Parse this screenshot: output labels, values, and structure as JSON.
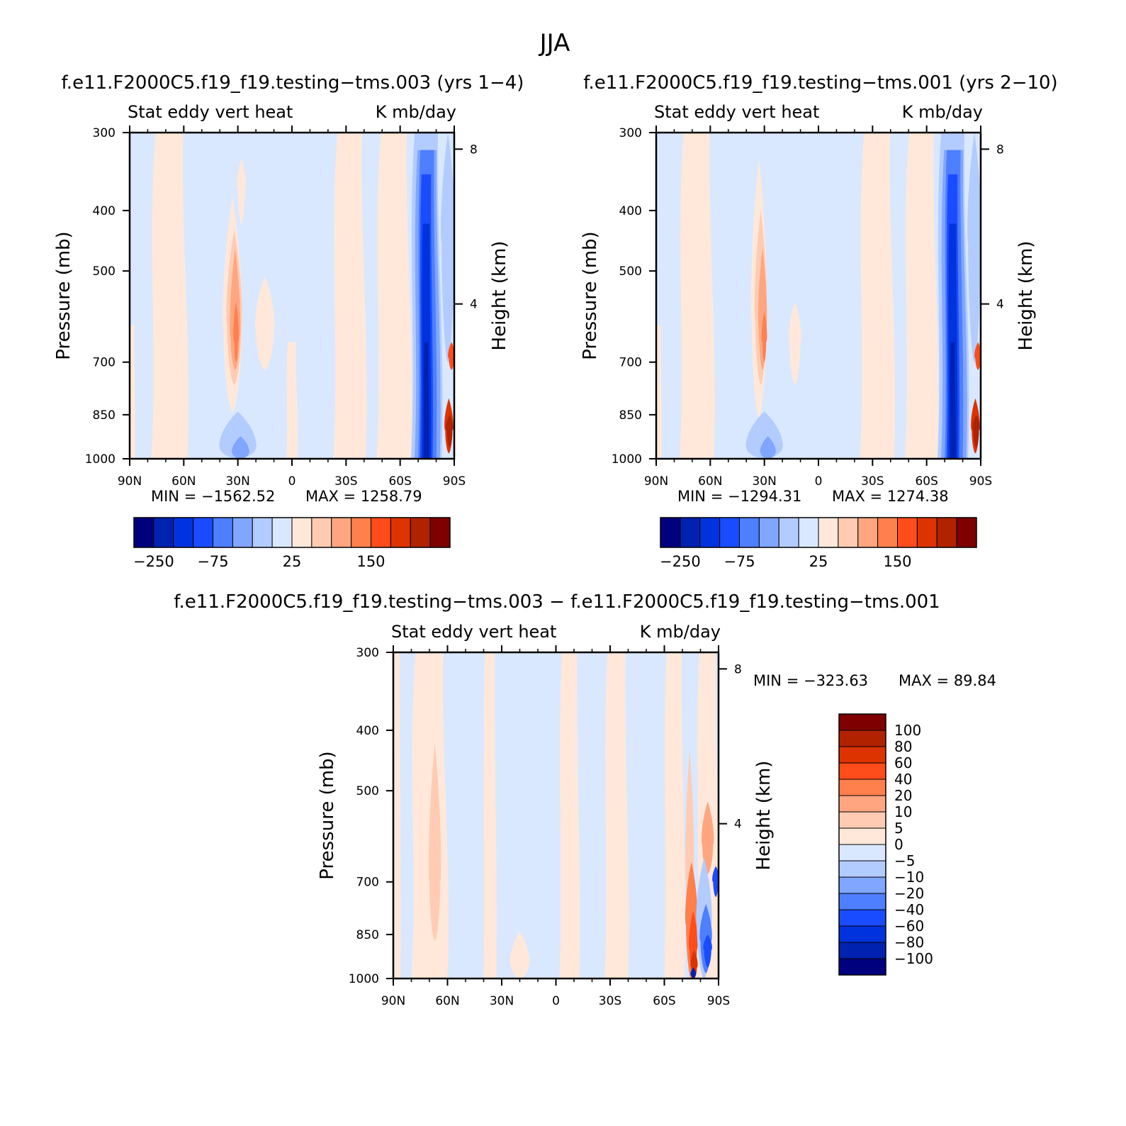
{
  "figure": {
    "title": "JJA"
  },
  "colors": {
    "scale": [
      "#00007f",
      "#0022b0",
      "#0033dd",
      "#1a4cff",
      "#4d7fff",
      "#80a6ff",
      "#b3ccff",
      "#d9e8ff",
      "#ffe8d9",
      "#ffccb3",
      "#ffa680",
      "#ff7f4d",
      "#ff4c1a",
      "#dd3300",
      "#b02200",
      "#7f0000"
    ]
  },
  "chart_data": [
    {
      "type": "heatmap",
      "name": "panel-top-left",
      "title": "f.e11.F2000C5.f19_f19.testing−tms.003 (yrs 1−4)",
      "left_label": "Stat eddy vert heat",
      "right_label": "K mb/day",
      "xlabel": "",
      "ylabel": "Pressure (mb)",
      "y2label": "Height (km)",
      "xticks": [
        "90N",
        "60N",
        "30N",
        "0",
        "30S",
        "60S",
        "90S"
      ],
      "yticks": [
        300,
        400,
        500,
        700,
        850,
        1000
      ],
      "y2ticks": [
        8,
        4
      ],
      "ylim": [
        1000,
        300
      ],
      "y_scale": "log",
      "min_label": "MIN = −1562.52",
      "max_label": "MAX = 1258.79",
      "colorbar": {
        "orientation": "horizontal",
        "labels": [
          "−250",
          "−75",
          "25",
          "150"
        ]
      },
      "fields": [
        {
          "type": "band",
          "lat": [
            58,
            78
          ],
          "p": [
            300,
            1000
          ],
          "level": 8
        },
        {
          "type": "band",
          "lat": [
            -23,
            -41
          ],
          "p": [
            300,
            1000
          ],
          "level": 8
        },
        {
          "type": "band",
          "lat": [
            -47,
            -66
          ],
          "p": [
            300,
            1000
          ],
          "level": 8
        },
        {
          "type": "band",
          "lat": [
            87,
            90
          ],
          "p": [
            610,
            1000
          ],
          "level": 8
        },
        {
          "type": "band",
          "lat": [
            -3,
            3
          ],
          "p": [
            650,
            1000
          ],
          "level": 8
        },
        {
          "type": "blob",
          "lat": [
            28,
            38
          ],
          "p": [
            380,
            840
          ],
          "peak_p": 620,
          "level": 8
        },
        {
          "type": "blob",
          "lat": [
            28,
            36
          ],
          "p": [
            430,
            760
          ],
          "peak_p": 610,
          "level": 9
        },
        {
          "type": "blob",
          "lat": [
            29,
            34
          ],
          "p": [
            460,
            720
          ],
          "peak_p": 640,
          "level": 10
        },
        {
          "type": "blob",
          "lat": [
            30,
            32
          ],
          "p": [
            560,
            700
          ],
          "peak_p": 650,
          "level": 11
        },
        {
          "type": "blob",
          "lat": [
            26,
            30
          ],
          "p": [
            330,
            420
          ],
          "peak_p": 370,
          "level": 8
        },
        {
          "type": "blob",
          "lat": [
            10,
            20
          ],
          "p": [
            510,
            720
          ],
          "peak_p": 620,
          "level": 8
        },
        {
          "type": "blob",
          "lat": [
            20,
            40
          ],
          "p": [
            840,
            1000
          ],
          "peak_p": 960,
          "level": 6
        },
        {
          "type": "blob",
          "lat": [
            24,
            33
          ],
          "p": [
            920,
            1000
          ],
          "peak_p": 980,
          "level": 5
        },
        {
          "type": "band",
          "lat": [
            -66,
            -83
          ],
          "p": [
            300,
            1000
          ],
          "level": 6
        },
        {
          "type": "band",
          "lat": [
            -68,
            -82
          ],
          "p": [
            320,
            1000
          ],
          "level": 5
        },
        {
          "type": "band",
          "lat": [
            -70,
            -80
          ],
          "p": [
            320,
            1000
          ],
          "level": 4
        },
        {
          "type": "band",
          "lat": [
            -71,
            -78
          ],
          "p": [
            350,
            1000
          ],
          "level": 3
        },
        {
          "type": "band",
          "lat": [
            -72,
            -77
          ],
          "p": [
            420,
            1000
          ],
          "level": 2
        },
        {
          "type": "band",
          "lat": [
            -73,
            -76
          ],
          "p": [
            650,
            1000
          ],
          "level": 1
        },
        {
          "type": "blob",
          "lat": [
            -83,
            -90
          ],
          "p": [
            300,
            700
          ],
          "peak_p": 450,
          "level": 6
        },
        {
          "type": "blob",
          "lat": [
            -85,
            -89
          ],
          "p": [
            800,
            980
          ],
          "peak_p": 900,
          "level": 13
        },
        {
          "type": "blob",
          "lat": [
            -86,
            -89
          ],
          "p": [
            850,
            960
          ],
          "peak_p": 900,
          "level": 14
        },
        {
          "type": "blob",
          "lat": [
            -87,
            -90
          ],
          "p": [
            650,
            720
          ],
          "peak_p": 690,
          "level": 12
        }
      ]
    },
    {
      "type": "heatmap",
      "name": "panel-top-right",
      "title": "f.e11.F2000C5.f19_f19.testing−tms.001 (yrs 2−10)",
      "left_label": "Stat eddy vert heat",
      "right_label": "K mb/day",
      "xlabel": "",
      "ylabel": "Pressure (mb)",
      "y2label": "Height (km)",
      "xticks": [
        "90N",
        "60N",
        "30N",
        "0",
        "30S",
        "60S",
        "90S"
      ],
      "yticks": [
        300,
        400,
        500,
        700,
        850,
        1000
      ],
      "y2ticks": [
        8,
        4
      ],
      "ylim": [
        1000,
        300
      ],
      "y_scale": "log",
      "min_label": "MIN = −1294.31",
      "max_label": "MAX = 1274.38",
      "colorbar": {
        "orientation": "horizontal",
        "labels": [
          "−250",
          "−75",
          "25",
          "150"
        ]
      },
      "fields": [
        {
          "type": "band",
          "lat": [
            58,
            77
          ],
          "p": [
            300,
            1000
          ],
          "level": 8
        },
        {
          "type": "band",
          "lat": [
            -23,
            -42
          ],
          "p": [
            300,
            1000
          ],
          "level": 8
        },
        {
          "type": "band",
          "lat": [
            -48,
            -66
          ],
          "p": [
            300,
            1000
          ],
          "level": 8
        },
        {
          "type": "band",
          "lat": [
            87,
            90
          ],
          "p": [
            610,
            1000
          ],
          "level": 8
        },
        {
          "type": "blob",
          "lat": [
            29,
            37
          ],
          "p": [
            330,
            860
          ],
          "peak_p": 600,
          "level": 8
        },
        {
          "type": "blob",
          "lat": [
            29,
            35
          ],
          "p": [
            400,
            760
          ],
          "peak_p": 600,
          "level": 9
        },
        {
          "type": "blob",
          "lat": [
            29,
            33
          ],
          "p": [
            460,
            720
          ],
          "peak_p": 620,
          "level": 10
        },
        {
          "type": "blob",
          "lat": [
            29,
            31
          ],
          "p": [
            580,
            700
          ],
          "peak_p": 650,
          "level": 11
        },
        {
          "type": "blob",
          "lat": [
            10,
            16
          ],
          "p": [
            560,
            760
          ],
          "peak_p": 650,
          "level": 8
        },
        {
          "type": "blob",
          "lat": [
            20,
            40
          ],
          "p": [
            840,
            1000
          ],
          "peak_p": 960,
          "level": 6
        },
        {
          "type": "blob",
          "lat": [
            24,
            32
          ],
          "p": [
            920,
            1000
          ],
          "peak_p": 980,
          "level": 5
        },
        {
          "type": "band",
          "lat": [
            -66,
            -83
          ],
          "p": [
            300,
            1000
          ],
          "level": 6
        },
        {
          "type": "band",
          "lat": [
            -68,
            -82
          ],
          "p": [
            320,
            1000
          ],
          "level": 5
        },
        {
          "type": "band",
          "lat": [
            -70,
            -80
          ],
          "p": [
            320,
            1000
          ],
          "level": 4
        },
        {
          "type": "band",
          "lat": [
            -71,
            -78
          ],
          "p": [
            350,
            1000
          ],
          "level": 3
        },
        {
          "type": "band",
          "lat": [
            -72,
            -77
          ],
          "p": [
            420,
            1000
          ],
          "level": 2
        },
        {
          "type": "band",
          "lat": [
            -73,
            -76
          ],
          "p": [
            650,
            1000
          ],
          "level": 1
        },
        {
          "type": "blob",
          "lat": [
            -83,
            -90
          ],
          "p": [
            300,
            700
          ],
          "peak_p": 450,
          "level": 6
        },
        {
          "type": "blob",
          "lat": [
            -85,
            -89
          ],
          "p": [
            800,
            980
          ],
          "peak_p": 900,
          "level": 13
        },
        {
          "type": "blob",
          "lat": [
            -86,
            -89
          ],
          "p": [
            850,
            960
          ],
          "peak_p": 900,
          "level": 14
        },
        {
          "type": "blob",
          "lat": [
            -87,
            -90
          ],
          "p": [
            650,
            720
          ],
          "peak_p": 690,
          "level": 12
        }
      ]
    },
    {
      "type": "heatmap",
      "name": "panel-bottom-diff",
      "title": "f.e11.F2000C5.f19_f19.testing−tms.003 − f.e11.F2000C5.f19_f19.testing−tms.001",
      "left_label": "Stat eddy vert heat",
      "right_label": "K mb/day",
      "xlabel": "",
      "ylabel": "Pressure (mb)",
      "y2label": "Height (km)",
      "xticks": [
        "90N",
        "60N",
        "30N",
        "0",
        "30S",
        "60S",
        "90S"
      ],
      "yticks": [
        300,
        400,
        500,
        700,
        850,
        1000
      ],
      "y2ticks": [
        8,
        4
      ],
      "ylim": [
        1000,
        300
      ],
      "y_scale": "log",
      "min_label": "MIN = −323.63",
      "max_label": "MAX =   89.84",
      "colorbar": {
        "orientation": "vertical",
        "labels": [
          "100",
          "80",
          "60",
          "40",
          "20",
          "10",
          "5",
          "0",
          "−5",
          "−10",
          "−20",
          "−40",
          "−60",
          "−80",
          "−100"
        ]
      },
      "fields": [
        {
          "type": "band",
          "lat": [
            60,
            80
          ],
          "p": [
            300,
            1000
          ],
          "level": 8
        },
        {
          "type": "band",
          "lat": [
            33,
            40
          ],
          "p": [
            300,
            1000
          ],
          "level": 8
        },
        {
          "type": "band",
          "lat": [
            -2,
            -13
          ],
          "p": [
            300,
            1000
          ],
          "level": 8
        },
        {
          "type": "band",
          "lat": [
            -27,
            -40
          ],
          "p": [
            300,
            1000
          ],
          "level": 8
        },
        {
          "type": "band",
          "lat": [
            -60,
            -71
          ],
          "p": [
            300,
            1000
          ],
          "level": 8
        },
        {
          "type": "band",
          "lat": [
            -78,
            -90
          ],
          "p": [
            300,
            1000
          ],
          "level": 8
        },
        {
          "type": "band",
          "lat": [
            86,
            90
          ],
          "p": [
            300,
            1000
          ],
          "level": 8
        },
        {
          "type": "blob",
          "lat": [
            64,
            70
          ],
          "p": [
            420,
            870
          ],
          "peak_p": 700,
          "level": 9
        },
        {
          "type": "blob",
          "lat": [
            15,
            25
          ],
          "p": [
            840,
            1000
          ],
          "peak_p": 950,
          "level": 8
        },
        {
          "type": "blob",
          "lat": [
            -72,
            -76
          ],
          "p": [
            430,
            1000
          ],
          "peak_p": 700,
          "level": 9
        },
        {
          "type": "blob",
          "lat": [
            -81,
            -87
          ],
          "p": [
            520,
            680
          ],
          "peak_p": 610,
          "level": 10
        },
        {
          "type": "blob",
          "lat": [
            -72,
            -78
          ],
          "p": [
            650,
            1000
          ],
          "peak_p": 820,
          "level": 11
        },
        {
          "type": "blob",
          "lat": [
            -74,
            -78
          ],
          "p": [
            780,
            980
          ],
          "peak_p": 900,
          "level": 12
        },
        {
          "type": "blob",
          "lat": [
            -75,
            -78
          ],
          "p": [
            900,
            1000
          ],
          "peak_p": 960,
          "level": 13
        },
        {
          "type": "blob",
          "lat": [
            -78,
            -86
          ],
          "p": [
            640,
            1000
          ],
          "peak_p": 820,
          "level": 6
        },
        {
          "type": "blob",
          "lat": [
            -80,
            -86
          ],
          "p": [
            760,
            980
          ],
          "peak_p": 870,
          "level": 4
        },
        {
          "type": "blob",
          "lat": [
            -82,
            -86
          ],
          "p": [
            850,
            960
          ],
          "peak_p": 900,
          "level": 3
        },
        {
          "type": "blob",
          "lat": [
            -75,
            -77
          ],
          "p": [
            960,
            1000
          ],
          "peak_p": 990,
          "level": 1
        },
        {
          "type": "blob",
          "lat": [
            -87,
            -90
          ],
          "p": [
            660,
            740
          ],
          "peak_p": 700,
          "level": 3
        }
      ]
    }
  ]
}
